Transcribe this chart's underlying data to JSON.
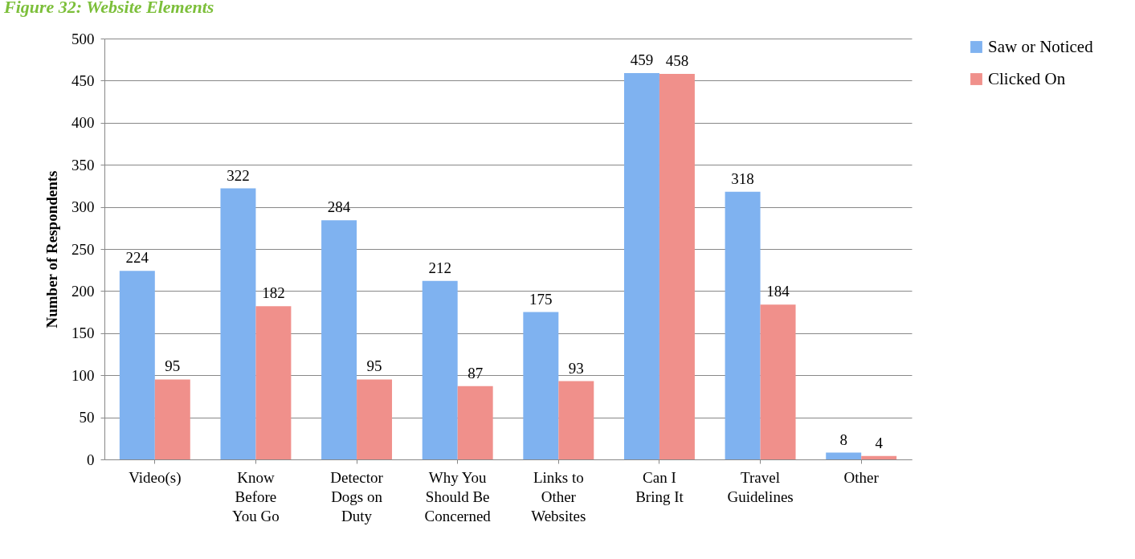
{
  "chart_data": {
    "type": "bar",
    "title": "Figure 32: Website Elements",
    "ylabel": "Number of Respondents",
    "categories": [
      "Video(s)",
      "Know\nBefore\nYou Go",
      "Detector\nDogs on\nDuty",
      "Why You\nShould Be\nConcerned",
      "Links to\nOther\nWebsites",
      "Can I\nBring It",
      "Travel\nGuidelines",
      "Other"
    ],
    "series": [
      {
        "name": "Saw or Noticed",
        "color": "#7fb2f0",
        "values": [
          224,
          322,
          284,
          212,
          175,
          459,
          318,
          8
        ]
      },
      {
        "name": "Clicked On",
        "color": "#f0908b",
        "values": [
          95,
          182,
          95,
          87,
          93,
          458,
          184,
          4
        ]
      }
    ],
    "ylim": [
      0,
      500
    ],
    "yticks": [
      0,
      50,
      100,
      150,
      200,
      250,
      300,
      350,
      400,
      450,
      500
    ],
    "grid": "y",
    "legend": "right",
    "data_labels": true
  }
}
